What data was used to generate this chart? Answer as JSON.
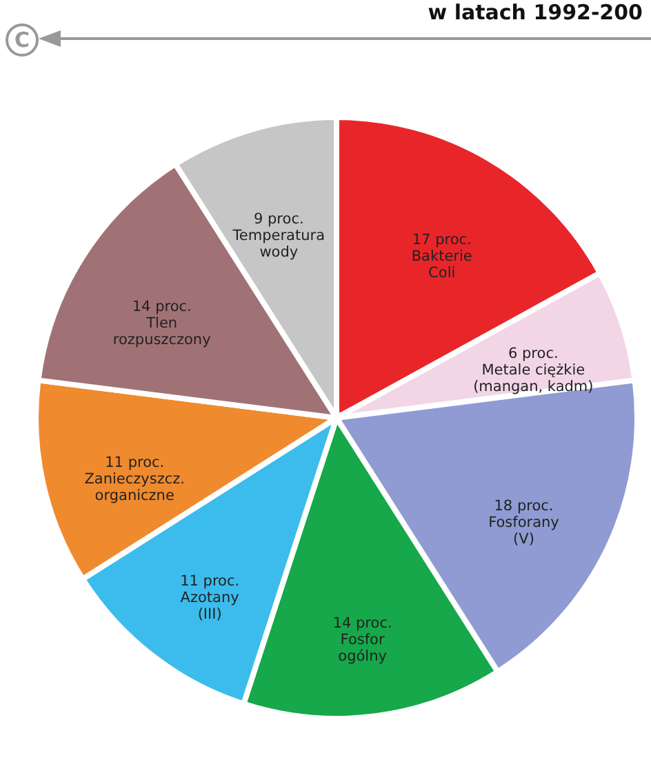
{
  "chart_data": {
    "type": "pie",
    "title": "w latach 1992-200",
    "annotations": [
      "C"
    ],
    "categories": [
      "Bakterie Coli",
      "Metale ciężkie (mangan, kadm)",
      "Fosforany (V)",
      "Fosfor ogólny",
      "Azotany (III)",
      "Zanieczyszcz. organiczne",
      "Tlen rozpuszczony",
      "Temperatura wody"
    ],
    "values": [
      17,
      6,
      18,
      14,
      11,
      11,
      14,
      9
    ],
    "value_labels": [
      "17 proc.",
      "6 proc.",
      "18 proc.",
      "14 proc.",
      "11 proc.",
      "11 proc.",
      "14 proc.",
      "9 proc."
    ],
    "colors": [
      "#e8262a",
      "#f2d6e6",
      "#8f9bd2",
      "#16a84a",
      "#3cbcec",
      "#f08a2e",
      "#a07276",
      "#c6c6c6"
    ],
    "legend": false
  }
}
